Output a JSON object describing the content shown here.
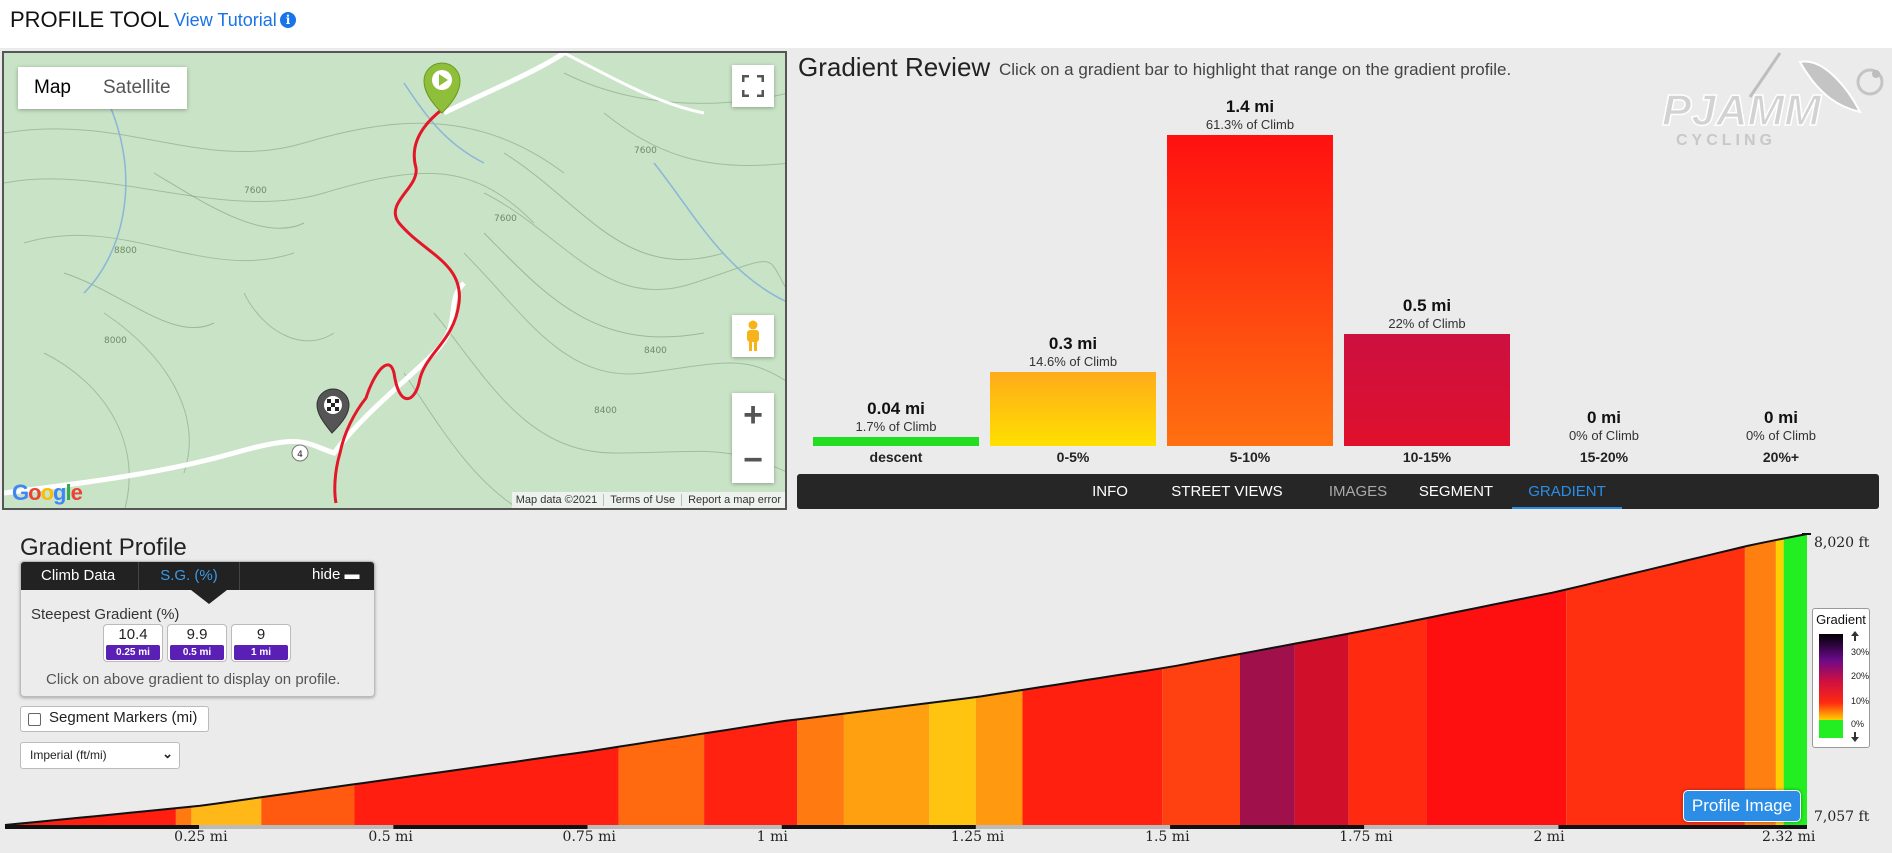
{
  "header": {
    "title": "PROFILE TOOL",
    "tutorial_link": "View Tutorial"
  },
  "map": {
    "tabs": [
      "Map",
      "Satellite"
    ],
    "attribution": {
      "data": "Map data ©2021",
      "terms": "Terms of Use",
      "report": "Report a map error"
    },
    "google_logo": "Google",
    "route_badge": "4",
    "contour_labels": [
      "7600",
      "7600",
      "8000",
      "8400",
      "8400",
      "8800",
      "7600",
      "8000"
    ]
  },
  "review": {
    "title": "Gradient Review",
    "hint": "Click on a gradient bar to highlight that range on the gradient profile.",
    "logo_main": "PJAMM",
    "logo_sub": "CYCLING",
    "bars": [
      {
        "category": "descent",
        "distance": "0.04 mi",
        "percent_label": "1.7% of Climb",
        "percent": 1.7,
        "fill": [
          "#22dd22",
          "#22dd22"
        ]
      },
      {
        "category": "0-5%",
        "distance": "0.3 mi",
        "percent_label": "14.6% of Climb",
        "percent": 14.6,
        "fill": [
          "#ffab1a",
          "#ffe000"
        ]
      },
      {
        "category": "5-10%",
        "distance": "1.4 mi",
        "percent_label": "61.3% of Climb",
        "percent": 61.3,
        "fill": [
          "#ff1010",
          "#ff7010"
        ]
      },
      {
        "category": "10-15%",
        "distance": "0.5 mi",
        "percent_label": "22% of Climb",
        "percent": 22,
        "fill": [
          "#cc1040",
          "#e0102c"
        ]
      },
      {
        "category": "15-20%",
        "distance": "0 mi",
        "percent_label": "0% of Climb",
        "percent": 0,
        "fill": [
          "#000",
          "#000"
        ]
      },
      {
        "category": "20%+",
        "distance": "0 mi",
        "percent_label": "0% of Climb",
        "percent": 0,
        "fill": [
          "#000",
          "#000"
        ]
      }
    ],
    "tabs": [
      {
        "label": "INFO",
        "state": "normal"
      },
      {
        "label": "STREET VIEWS",
        "state": "normal"
      },
      {
        "label": "IMAGES",
        "state": "dim"
      },
      {
        "label": "SEGMENT",
        "state": "normal"
      },
      {
        "label": "GRADIENT",
        "state": "selected"
      }
    ]
  },
  "profile": {
    "title": "Gradient Profile",
    "climb_data_label": "Climb Data",
    "sg_label": "S.G. (%)",
    "hide_label": "hide",
    "steepest_label": "Steepest Gradient (%)",
    "steepest": [
      {
        "value": "10.4",
        "distance": "0.25 mi"
      },
      {
        "value": "9.9",
        "distance": "0.5 mi"
      },
      {
        "value": "9",
        "distance": "1 mi"
      }
    ],
    "note": "Click on above gradient to display on profile.",
    "segment_markers_label": "Segment Markers (mi)",
    "units_label": "Imperial (ft/mi)",
    "elevation_top": "8,020 ft",
    "elevation_bottom": "7,057 ft",
    "distance_labels": [
      "0.25 mi",
      "0.5 mi",
      "0.75 mi",
      "1 mi",
      "1.25 mi",
      "1.5 mi",
      "1.75 mi",
      "2 mi",
      "2.32 mi"
    ],
    "legend": {
      "title": "Gradient",
      "labels": [
        "30%",
        "20%",
        "10%",
        "0%"
      ]
    },
    "profile_image_button": "Profile Image"
  },
  "chart_data": {
    "type": "area",
    "xlabel": "",
    "ylabel": "",
    "xlim": [
      0,
      2.32
    ],
    "ylim": [
      7057,
      8020
    ],
    "x_ticks": [
      "0.25 mi",
      "0.5 mi",
      "0.75 mi",
      "1 mi",
      "1.25 mi",
      "1.5 mi",
      "1.75 mi",
      "2 mi",
      "2.32 mi"
    ],
    "elevation": {
      "x": [
        0,
        0.25,
        0.5,
        0.75,
        1.0,
        1.25,
        1.5,
        1.75,
        2.0,
        2.25,
        2.32
      ],
      "y": [
        7057,
        7120,
        7210,
        7300,
        7400,
        7480,
        7580,
        7700,
        7830,
        7985,
        8020
      ]
    },
    "segments": [
      {
        "x0": 0.0,
        "x1": 0.22,
        "color": "#ff1e10"
      },
      {
        "x0": 0.22,
        "x1": 0.24,
        "color": "#ff7a10"
      },
      {
        "x0": 0.24,
        "x1": 0.33,
        "color": "#ffb818"
      },
      {
        "x0": 0.33,
        "x1": 0.45,
        "color": "#ff5a10"
      },
      {
        "x0": 0.45,
        "x1": 0.79,
        "color": "#ff1e10"
      },
      {
        "x0": 0.79,
        "x1": 0.9,
        "color": "#ff6a10"
      },
      {
        "x0": 0.9,
        "x1": 1.02,
        "color": "#ff2210"
      },
      {
        "x0": 1.02,
        "x1": 1.08,
        "color": "#ff7a10"
      },
      {
        "x0": 1.08,
        "x1": 1.19,
        "color": "#ffa010"
      },
      {
        "x0": 1.19,
        "x1": 1.25,
        "color": "#ffc410"
      },
      {
        "x0": 1.25,
        "x1": 1.31,
        "color": "#ff9a10"
      },
      {
        "x0": 1.31,
        "x1": 1.49,
        "color": "#ff2010"
      },
      {
        "x0": 1.49,
        "x1": 1.59,
        "color": "#ff4010"
      },
      {
        "x0": 1.59,
        "x1": 1.66,
        "color": "#a0104a"
      },
      {
        "x0": 1.66,
        "x1": 1.73,
        "color": "#d0102a"
      },
      {
        "x0": 1.73,
        "x1": 1.83,
        "color": "#ff2a10"
      },
      {
        "x0": 1.83,
        "x1": 2.01,
        "color": "#ff1010"
      },
      {
        "x0": 2.01,
        "x1": 2.24,
        "color": "#ff3010"
      },
      {
        "x0": 2.24,
        "x1": 2.28,
        "color": "#ff8010"
      },
      {
        "x0": 2.28,
        "x1": 2.29,
        "color": "#ffd000"
      },
      {
        "x0": 2.29,
        "x1": 2.32,
        "color": "#22ee22"
      }
    ]
  }
}
